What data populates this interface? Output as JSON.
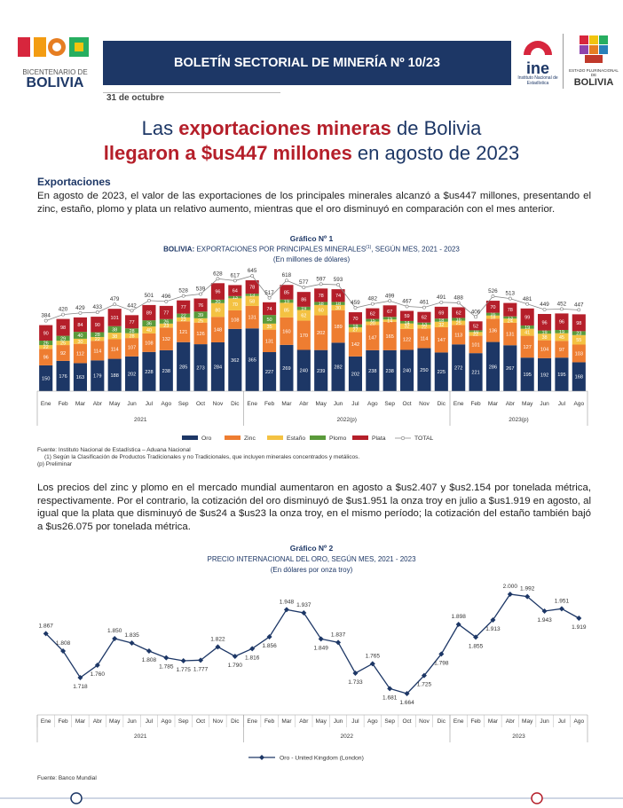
{
  "header": {
    "logo_left_top": "BICENTENARIO DE",
    "logo_left_bottom": "BOLIVIA",
    "banner": "BOLETÍN SECTORIAL DE MINERÍA Nº 10/23",
    "ine": "ine",
    "ine_name": "Instituto Nacional de Estadística",
    "logo_right_top": "ESTADO PLURINACIONAL DE",
    "logo_right_bottom": "BOLIVIA",
    "date": "31 de octubre"
  },
  "title": {
    "line1": [
      "Las ",
      "exportaciones mineras",
      " de Bolivia"
    ],
    "line2": [
      "llegaron a $us447 millones",
      " en agosto de 2023"
    ]
  },
  "section": "Exportaciones",
  "paragraph_1": "En agosto de 2023, el valor de las exportaciones de los principales minerales alcanzó a $us447 millones, presentando el zinc, estaño, plomo y plata un relativo aumento, mientras que el oro disminuyó en comparación con el mes anterior.",
  "paragraph_2": "Los precios del zinc y plomo en el mercado mundial aumentaron en agosto a $us2.407 y $us2.154 por tonelada métrica, respectivamente. Por el contrario, la cotización del oro disminuyó de $us1.951 la onza troy en julio a $us1.919 en agosto, al igual que la plata que disminuyó de $us24 a $us23 la onza troy, en el mismo período; la cotización del estaño también bajó a $us26.075 por tonelada métrica.",
  "chart_data": [
    {
      "type": "bar",
      "stacked": true,
      "label": "Gráfico Nº 1",
      "title_bold": "BOLIVIA:",
      "title": " EXPORTACIONES POR PRINCIPALES MINERALES",
      "title_note": "(1)",
      "title_end": ", SEGÚN MES, 2021 - 2023",
      "subtitle": "(En millones de dólares)",
      "groups": [
        {
          "label": "2021",
          "months": [
            "Ene",
            "Feb",
            "Mar",
            "Abr",
            "May",
            "Jun",
            "Jul",
            "Ago",
            "Sep",
            "Oct",
            "Nov",
            "Dic"
          ]
        },
        {
          "label": "2022(p)",
          "months": [
            "Ene",
            "Feb",
            "Mar",
            "Abr",
            "May",
            "Jun",
            "Jul",
            "Ago",
            "Sep",
            "Oct",
            "Nov",
            "Dic"
          ]
        },
        {
          "label": "2023(p)",
          "months": [
            "Ene",
            "Feb",
            "Mar",
            "Abr",
            "May",
            "Jun",
            "Jul",
            "Ago"
          ]
        }
      ],
      "series": [
        {
          "name": "Oro",
          "color": "#1d3766",
          "values": [
            150,
            176,
            163,
            179,
            188,
            202,
            228,
            238,
            285,
            273,
            284,
            362,
            365,
            227,
            269,
            240,
            239,
            282,
            202,
            238,
            238,
            240,
            250,
            225,
            272,
            221,
            286,
            267,
            195,
            192,
            195,
            168
          ]
        },
        {
          "name": "Zinc",
          "color": "#ee7d31",
          "values": [
            96,
            92,
            112,
            114,
            114,
            107,
            108,
            132,
            121,
            126,
            148,
            108,
            131,
            131,
            160,
            170,
            202,
            189,
            142,
            147,
            165,
            122,
            114,
            147,
            113,
            101,
            136,
            131,
            127,
            104,
            97,
            103
          ]
        },
        {
          "name": "Estaño",
          "color": "#f4c242",
          "values": [
            22,
            25,
            30,
            22,
            38,
            28,
            40,
            23,
            23,
            25,
            80,
            70,
            58,
            35,
            85,
            62,
            60,
            30,
            27,
            20,
            14,
            32,
            22,
            32,
            25,
            22,
            18,
            24,
            41,
            38,
            45,
            55
          ]
        },
        {
          "name": "Plomo",
          "color": "#5a9a3a",
          "values": [
            26,
            29,
            40,
            28,
            38,
            28,
            36,
            26,
            22,
            39,
            20,
            13,
            13,
            50,
            19,
            19,
            18,
            18,
            18,
            15,
            15,
            14,
            13,
            18,
            16,
            10,
            16,
            13,
            19,
            19,
            19,
            23
          ]
        },
        {
          "name": "Plata",
          "color": "#b51f2a",
          "values": [
            90,
            98,
            84,
            90,
            101,
            77,
            89,
            77,
            77,
            76,
            96,
            64,
            78,
            74,
            85,
            86,
            78,
            74,
            70,
            62,
            67,
            59,
            62,
            69,
            62,
            52,
            70,
            78,
            99,
            96,
            96,
            98
          ]
        }
      ],
      "total_name": "TOTAL",
      "totals": [
        384,
        420,
        429,
        433,
        479,
        442,
        501,
        496,
        528,
        539,
        628,
        617,
        645,
        517,
        618,
        577,
        597,
        593,
        459,
        482,
        499,
        467,
        461,
        491,
        488,
        406,
        526,
        513,
        481,
        449,
        452,
        447
      ],
      "notes": [
        "Fuente: Instituto Nacional de Estadística – Aduana Nacional",
        "(1) Según la Clasificación de Productos Tradicionales y no Tradicionales, que incluyen minerales concentrados y metálicos.",
        "(p) Preliminar"
      ]
    },
    {
      "type": "line",
      "label": "Gráfico Nº 2",
      "title": "PRECIO INTERNACIONAL DEL ORO, SEGÚN MES, 2021 - 2023",
      "subtitle": "(En dólares por onza troy)",
      "groups": [
        {
          "label": "2021",
          "months": [
            "Ene",
            "Feb",
            "Mar",
            "Abr",
            "May",
            "Jun",
            "Jul",
            "Ago",
            "Sep",
            "Oct",
            "Nov",
            "Dic"
          ]
        },
        {
          "label": "2022",
          "months": [
            "Ene",
            "Feb",
            "Mar",
            "Abr",
            "May",
            "Jun",
            "Jul",
            "Ago",
            "Sep",
            "Oct",
            "Nov",
            "Dic"
          ]
        },
        {
          "label": "2023",
          "months": [
            "Ene",
            "Feb",
            "Mar",
            "Abr",
            "May",
            "Jun",
            "Jul",
            "Ago"
          ]
        }
      ],
      "series": [
        {
          "name": "Oro - United Kingdom (London)",
          "color": "#1d3766",
          "values": [
            1867,
            1808,
            1718,
            1760,
            1850,
            1835,
            1808,
            1785,
            1775,
            1777,
            1822,
            1790,
            1816,
            1856,
            1948,
            1937,
            1849,
            1837,
            1733,
            1765,
            1681,
            1664,
            1725,
            1798,
            1898,
            1855,
            1913,
            2000,
            1992,
            1943,
            1951,
            1919
          ],
          "value_labels": [
            "1.867",
            "1.808",
            "1.718",
            "1.760",
            "1.850",
            "1.835",
            "1.808",
            "1.785",
            "1.775",
            "1.777",
            "1.822",
            "1.790",
            "1.816",
            "1.856",
            "1.948",
            "1.937",
            "1.849",
            "1.837",
            "1.733",
            "1.765",
            "1.681",
            "1.664",
            "1.725",
            "1.798",
            "1.898",
            "1.855",
            "1.913",
            "2.000",
            "1.992",
            "1.943",
            "1.951",
            "1.919"
          ]
        }
      ],
      "source": "Fuente: Banco Mundial"
    }
  ]
}
